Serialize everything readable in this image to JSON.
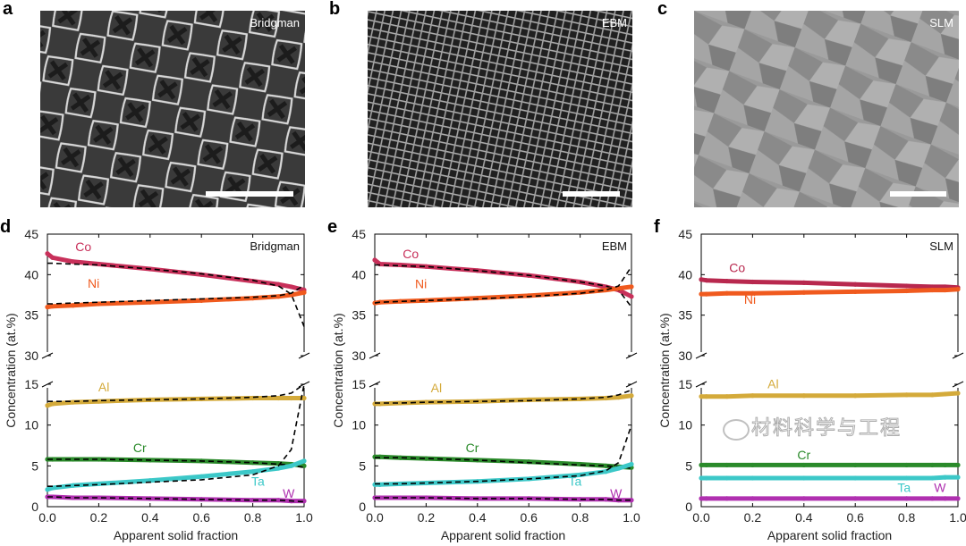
{
  "panels_top": [
    {
      "letter": "a",
      "title": "Bridgman"
    },
    {
      "letter": "b",
      "title": "EBM"
    },
    {
      "letter": "c",
      "title": "SLM"
    }
  ],
  "watermark": "材料科学与工程",
  "chart_data": [
    {
      "letter": "d",
      "type": "line",
      "title": "Bridgman",
      "xlabel": "Apparent solid fraction",
      "ylabel": "Concentration (at.%)",
      "xlim": [
        0,
        1
      ],
      "ylim_upper": [
        30,
        45
      ],
      "ylim_lower": [
        0,
        15
      ],
      "xticks": [
        "0.0",
        "0.2",
        "0.4",
        "0.6",
        "0.8",
        "1.0"
      ],
      "yticks_upper": [
        "30",
        "35",
        "40",
        "45"
      ],
      "yticks_lower": [
        "0",
        "5",
        "10",
        "15"
      ],
      "x": [
        0,
        0.02,
        0.1,
        0.2,
        0.4,
        0.6,
        0.8,
        0.9,
        0.95,
        1.0
      ],
      "series": [
        {
          "name": "Co",
          "color": "#c8305a",
          "values": [
            42.6,
            42.1,
            41.6,
            41.3,
            40.7,
            40.0,
            39.2,
            38.8,
            38.5,
            38.1
          ],
          "fit": [
            41.4,
            41.4,
            41.3,
            41.2,
            40.7,
            40.1,
            39.3,
            38.6,
            37.6,
            33.6
          ],
          "label": [
            0.14,
            42.9
          ]
        },
        {
          "name": "Ni",
          "color": "#f05a1e",
          "values": [
            36.0,
            36.1,
            36.2,
            36.4,
            36.6,
            36.8,
            37.1,
            37.3,
            37.5,
            37.8
          ],
          "fit": [
            36.4,
            36.4,
            36.5,
            36.6,
            36.8,
            37.0,
            37.2,
            37.4,
            37.7,
            38.7
          ],
          "label": [
            0.18,
            38.4
          ]
        },
        {
          "name": "Al",
          "color": "#d4aa3a",
          "values": [
            12.4,
            12.6,
            12.8,
            12.9,
            13.1,
            13.2,
            13.3,
            13.3,
            13.3,
            13.3
          ],
          "fit": [
            12.9,
            12.9,
            12.9,
            13.0,
            13.1,
            13.2,
            13.4,
            13.6,
            13.9,
            15.0
          ],
          "label": [
            0.22,
            14.1
          ]
        },
        {
          "name": "Cr",
          "color": "#2a8a2a",
          "values": [
            5.8,
            5.8,
            5.8,
            5.8,
            5.7,
            5.6,
            5.4,
            5.3,
            5.2,
            5.0
          ],
          "fit": [
            5.8,
            5.8,
            5.8,
            5.8,
            5.7,
            5.6,
            5.4,
            5.2,
            5.1,
            4.8
          ],
          "label": [
            0.36,
            6.7
          ]
        },
        {
          "name": "Ta",
          "color": "#3cc8c8",
          "values": [
            2.1,
            2.3,
            2.6,
            2.8,
            3.2,
            3.7,
            4.3,
            4.7,
            5.0,
            5.6
          ],
          "fit": [
            2.5,
            2.5,
            2.6,
            2.7,
            3.0,
            3.3,
            3.9,
            5.0,
            7.0,
            15.0
          ],
          "label": [
            0.82,
            2.6
          ]
        },
        {
          "name": "W",
          "color": "#b030b0",
          "values": [
            1.2,
            1.2,
            1.1,
            1.1,
            1.0,
            0.9,
            0.8,
            0.8,
            0.7,
            0.7
          ],
          "fit": [
            1.2,
            1.2,
            1.1,
            1.1,
            1.0,
            0.9,
            0.8,
            0.8,
            0.7,
            0.6
          ],
          "label": [
            0.94,
            1.1
          ]
        }
      ]
    },
    {
      "letter": "e",
      "type": "line",
      "title": "EBM",
      "xlabel": "Apparent solid fraction",
      "ylabel": "Concentration (at.%)",
      "xlim": [
        0,
        1
      ],
      "ylim_upper": [
        30,
        45
      ],
      "ylim_lower": [
        0,
        15
      ],
      "xticks": [
        "0.0",
        "0.2",
        "0.4",
        "0.6",
        "0.8",
        "1.0"
      ],
      "yticks_upper": [
        "30",
        "35",
        "40",
        "45"
      ],
      "yticks_lower": [
        "0",
        "5",
        "10",
        "15"
      ],
      "x": [
        0,
        0.02,
        0.1,
        0.2,
        0.4,
        0.6,
        0.8,
        0.9,
        0.95,
        1.0
      ],
      "series": [
        {
          "name": "Co",
          "color": "#c8305a",
          "values": [
            41.8,
            41.3,
            41.2,
            41.0,
            40.5,
            39.9,
            39.1,
            38.5,
            38.1,
            37.3
          ],
          "fit": [
            41.2,
            41.2,
            41.1,
            41.0,
            40.5,
            39.9,
            39.1,
            38.6,
            38.1,
            36.0
          ],
          "label": [
            0.14,
            42.0
          ]
        },
        {
          "name": "Ni",
          "color": "#f05a1e",
          "values": [
            36.5,
            36.6,
            36.7,
            36.8,
            37.1,
            37.4,
            37.8,
            38.1,
            38.3,
            38.5
          ],
          "fit": [
            36.5,
            36.6,
            36.7,
            36.8,
            37.0,
            37.3,
            37.7,
            38.1,
            38.6,
            41.0
          ],
          "label": [
            0.18,
            38.3
          ]
        },
        {
          "name": "Al",
          "color": "#d4aa3a",
          "values": [
            12.6,
            12.6,
            12.7,
            12.8,
            12.9,
            13.1,
            13.2,
            13.3,
            13.4,
            13.6
          ],
          "fit": [
            12.7,
            12.7,
            12.7,
            12.8,
            12.9,
            13.0,
            13.2,
            13.4,
            13.7,
            14.3
          ],
          "label": [
            0.24,
            14.0
          ]
        },
        {
          "name": "Cr",
          "color": "#2a8a2a",
          "values": [
            6.1,
            6.1,
            6.0,
            5.9,
            5.7,
            5.5,
            5.2,
            5.0,
            4.9,
            4.8
          ],
          "fit": [
            6.0,
            6.0,
            6.0,
            5.9,
            5.7,
            5.4,
            5.1,
            5.0,
            4.9,
            4.7
          ],
          "label": [
            0.38,
            6.7
          ]
        },
        {
          "name": "Ta",
          "color": "#3cc8c8",
          "values": [
            2.7,
            2.7,
            2.8,
            2.9,
            3.1,
            3.4,
            3.9,
            4.3,
            4.7,
            5.2
          ],
          "fit": [
            2.8,
            2.8,
            2.8,
            2.9,
            3.1,
            3.4,
            3.8,
            4.4,
            5.4,
            10.0
          ],
          "label": [
            0.78,
            2.6
          ]
        },
        {
          "name": "W",
          "color": "#b030b0",
          "values": [
            1.1,
            1.1,
            1.1,
            1.1,
            1.0,
            1.0,
            0.9,
            0.9,
            0.8,
            0.8
          ],
          "fit": [
            1.1,
            1.1,
            1.1,
            1.1,
            1.0,
            1.0,
            0.9,
            0.9,
            0.8,
            0.8
          ],
          "label": [
            0.94,
            1.1
          ]
        }
      ]
    },
    {
      "letter": "f",
      "type": "line",
      "title": "SLM",
      "xlabel": "Apparent solid fraction",
      "ylabel": "Concentration (at.%)",
      "xlim": [
        0,
        1
      ],
      "ylim_upper": [
        30,
        45
      ],
      "ylim_lower": [
        0,
        15
      ],
      "xticks": [
        "0.0",
        "0.2",
        "0.4",
        "0.6",
        "0.8",
        "1.0"
      ],
      "yticks_upper": [
        "30",
        "35",
        "40",
        "45"
      ],
      "yticks_lower": [
        "0",
        "5",
        "10",
        "15"
      ],
      "x": [
        0,
        0.02,
        0.1,
        0.2,
        0.4,
        0.6,
        0.8,
        0.9,
        0.95,
        1.0
      ],
      "series": [
        {
          "name": "Co",
          "color": "#b8284e",
          "values": [
            39.4,
            39.3,
            39.2,
            39.1,
            39.0,
            38.8,
            38.6,
            38.5,
            38.5,
            38.4
          ],
          "fit": null,
          "label": [
            0.14,
            40.3
          ]
        },
        {
          "name": "Ni",
          "color": "#f05a1e",
          "values": [
            37.6,
            37.6,
            37.7,
            37.7,
            37.8,
            37.9,
            38.0,
            38.1,
            38.1,
            38.2
          ],
          "fit": null,
          "label": [
            0.19,
            36.4
          ]
        },
        {
          "name": "Al",
          "color": "#d4aa3a",
          "values": [
            13.5,
            13.5,
            13.5,
            13.6,
            13.6,
            13.6,
            13.7,
            13.7,
            13.8,
            13.9
          ],
          "fit": null,
          "label": [
            0.28,
            14.5
          ]
        },
        {
          "name": "Cr",
          "color": "#2a8a2a",
          "values": [
            5.1,
            5.1,
            5.1,
            5.1,
            5.1,
            5.1,
            5.1,
            5.1,
            5.1,
            5.1
          ],
          "fit": null,
          "label": [
            0.4,
            5.8
          ]
        },
        {
          "name": "Ta",
          "color": "#3cc8c8",
          "values": [
            3.5,
            3.5,
            3.5,
            3.5,
            3.5,
            3.5,
            3.5,
            3.5,
            3.6,
            3.6
          ],
          "fit": null,
          "label": [
            0.79,
            1.8
          ]
        },
        {
          "name": "W",
          "color": "#b030b0",
          "values": [
            1.0,
            1.0,
            1.0,
            1.0,
            1.0,
            1.0,
            1.0,
            1.0,
            1.0,
            1.0
          ],
          "fit": null,
          "label": [
            0.93,
            1.8
          ]
        }
      ]
    }
  ]
}
